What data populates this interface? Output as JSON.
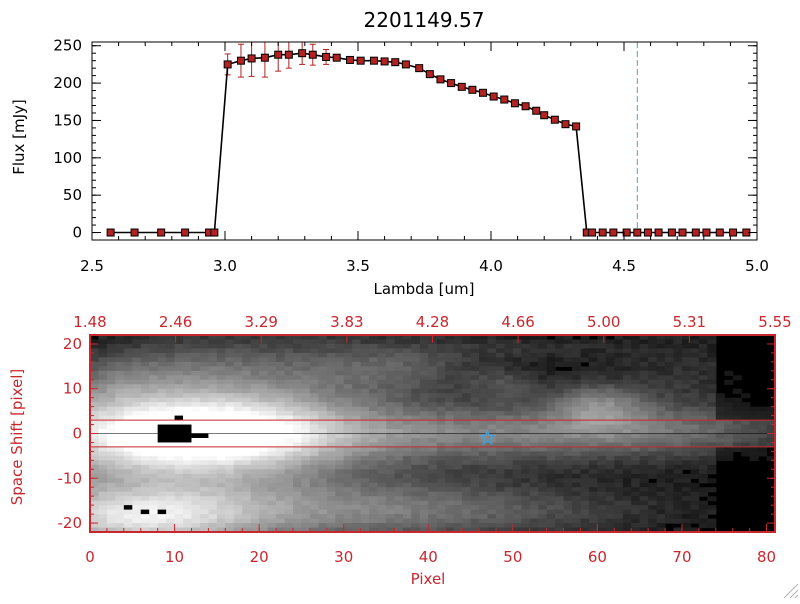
{
  "chart_data": [
    {
      "type": "line",
      "title": "2201149.57",
      "xlabel": "Lambda [um]",
      "ylabel": "Flux [mJy]",
      "xlim": [
        2.5,
        5.0
      ],
      "ylim": [
        -10,
        255
      ],
      "xticks": [
        "2.5",
        "3.0",
        "3.5",
        "4.0",
        "4.5",
        "5.0"
      ],
      "yticks": [
        "0",
        "50",
        "100",
        "150",
        "200",
        "250"
      ],
      "series": [
        {
          "color": "#000000",
          "marker_color": "#b22222",
          "x": [
            2.57,
            2.66,
            2.76,
            2.85,
            2.94,
            2.96,
            3.01,
            3.06,
            3.1,
            3.15,
            3.2,
            3.24,
            3.29,
            3.33,
            3.38,
            3.42,
            3.47,
            3.51,
            3.56,
            3.6,
            3.64,
            3.68,
            3.73,
            3.77,
            3.81,
            3.85,
            3.89,
            3.93,
            3.97,
            4.01,
            4.05,
            4.09,
            4.13,
            4.17,
            4.2,
            4.24,
            4.28,
            4.32,
            4.36,
            4.38,
            4.42,
            4.46,
            4.51,
            4.55,
            4.59,
            4.63,
            4.68,
            4.72,
            4.77,
            4.81,
            4.86,
            4.91,
            4.96
          ],
          "y": [
            0,
            0,
            0,
            0,
            0,
            0,
            225,
            230,
            233,
            234,
            238,
            238,
            240,
            238,
            235,
            234,
            231,
            230,
            230,
            229,
            228,
            225,
            220,
            212,
            205,
            200,
            195,
            191,
            187,
            182,
            178,
            173,
            169,
            163,
            157,
            151,
            145,
            142,
            0,
            0,
            0,
            0,
            0,
            0,
            0,
            0,
            0,
            0,
            0,
            0,
            0,
            0,
            0
          ],
          "errors": [
            0,
            0,
            0,
            0,
            0,
            0,
            14,
            22,
            24,
            26,
            22,
            18,
            15,
            14,
            10,
            4,
            4,
            3,
            3,
            3,
            3,
            3,
            3,
            3,
            3,
            3,
            3,
            3,
            3,
            3,
            3,
            3,
            3,
            3,
            3,
            3,
            3,
            4,
            0,
            0,
            0,
            0,
            0,
            0,
            0,
            0,
            0,
            0,
            0,
            0,
            0,
            0,
            0
          ]
        }
      ],
      "vline_x": 4.55,
      "vline_color": "#4a9fd4",
      "hline_y": 0,
      "hline_color": "#c8282d"
    },
    {
      "type": "heatmap",
      "xlabel": "Pixel",
      "ylabel": "Space Shift [pixel]",
      "xlim": [
        0,
        81
      ],
      "ylim": [
        -22,
        22
      ],
      "xticks": [
        "0",
        "10",
        "20",
        "30",
        "40",
        "50",
        "60",
        "70",
        "80"
      ],
      "yticks": [
        "-20",
        "-10",
        "0",
        "10",
        "20"
      ],
      "top_axis_ticks": [
        "1.48",
        "2.46",
        "3.29",
        "3.83",
        "4.28",
        "4.66",
        "5.00",
        "5.31",
        "5.55"
      ],
      "colormap": "grayscale",
      "frame_color": "#c8282d",
      "aperture_lines_y": [
        3,
        -3
      ],
      "aperture_color": "#c8282d",
      "trace_center_y": 0,
      "star_marker": {
        "x": 47,
        "y": -1,
        "color": "#4a9fd4"
      },
      "blobs": [
        {
          "x": 5,
          "y": 0,
          "wx": 14,
          "wy": 8,
          "amp": 0.55
        },
        {
          "x": 15,
          "y": 0,
          "wx": 10,
          "wy": 6.5,
          "amp": 0.55
        },
        {
          "x": 35,
          "y": 0,
          "wx": 26,
          "wy": 5,
          "amp": 0.38
        },
        {
          "x": 65,
          "y": 0.5,
          "wx": 13,
          "wy": 3.5,
          "amp": 0.18
        },
        {
          "x": 5,
          "y": -19,
          "wx": 10,
          "wy": 5,
          "amp": 0.6
        },
        {
          "x": 20,
          "y": -17,
          "wx": 18,
          "wy": 6,
          "amp": 0.35
        },
        {
          "x": 45,
          "y": -17,
          "wx": 16,
          "wy": 4,
          "amp": 0.18
        },
        {
          "x": 60,
          "y": 6.5,
          "wx": 4,
          "wy": 3.5,
          "amp": 0.32
        },
        {
          "x": 27,
          "y": 14,
          "wx": 9,
          "wy": 6,
          "amp": 0.22
        },
        {
          "x": 11,
          "y": 15,
          "wx": 7,
          "wy": 5,
          "amp": 0.18
        },
        {
          "x": 38,
          "y": 15,
          "wx": 6,
          "wy": 4,
          "amp": 0.15
        },
        {
          "x": 49,
          "y": 11,
          "wx": 3,
          "wy": 2.5,
          "amp": 0.17
        },
        {
          "x": 70,
          "y": 12,
          "wx": 6,
          "wy": 8,
          "amp": 0.1
        },
        {
          "x": 52,
          "y": 19,
          "wx": 8,
          "wy": 2,
          "amp": 0.1
        },
        {
          "x": 3,
          "y": 12,
          "wx": 4,
          "wy": 4,
          "amp": 0.12
        }
      ],
      "masked_regions": [
        {
          "x0": 8,
          "x1": 12,
          "y0": -2,
          "y1": 2
        },
        {
          "x0": 12,
          "x1": 14,
          "y0": -1,
          "y1": 0
        },
        {
          "x0": 10,
          "x1": 11,
          "y0": 3,
          "y1": 4
        },
        {
          "x0": 4,
          "x1": 5,
          "y0": -17,
          "y1": -16
        },
        {
          "x0": 6,
          "x1": 7,
          "y0": -18,
          "y1": -17
        },
        {
          "x0": 8,
          "x1": 9,
          "y0": -18,
          "y1": -17
        }
      ]
    }
  ]
}
